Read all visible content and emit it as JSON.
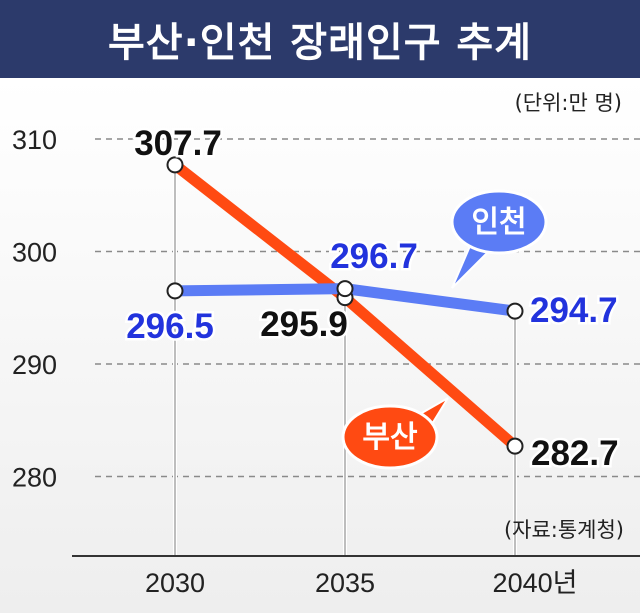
{
  "title": "부산·인천 장래인구 추계",
  "unit_note": "(단위:만 명)",
  "source_note": "(자료:통계청)",
  "chart_data": {
    "type": "line",
    "categories": [
      "2030",
      "2035",
      "2040년"
    ],
    "ylim": [
      275,
      315
    ],
    "yticks": [
      280,
      290,
      300,
      310
    ],
    "grid": true,
    "series": [
      {
        "name": "부산",
        "values": [
          307.7,
          295.9,
          282.7
        ],
        "value_labels": [
          "307.7",
          "295.9",
          "282.7"
        ],
        "color": "#ff4a12",
        "label_color": "#111111"
      },
      {
        "name": "인천",
        "values": [
          296.5,
          296.7,
          294.7
        ],
        "value_labels": [
          "296.5",
          "296.7",
          "294.7"
        ],
        "color": "#5b7cf5",
        "label_color": "#2233dd"
      }
    ]
  }
}
